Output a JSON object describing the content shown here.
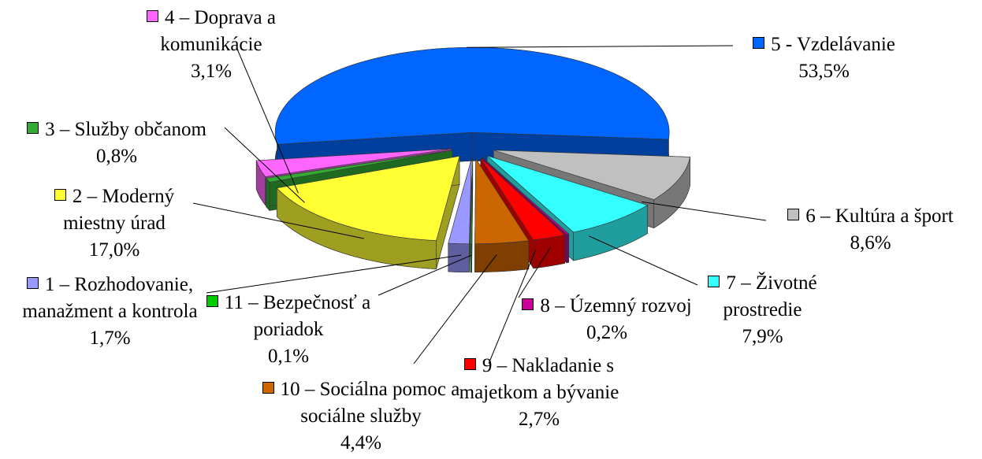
{
  "chart_data": {
    "type": "pie",
    "categories": [
      "1 – Rozhodovanie, manažment a kontrola",
      "2 – Moderný miestny úrad",
      "3 – Služby občanom",
      "4 – Doprava a komunikácie",
      "5 - Vzdelávanie",
      "6 – Kultúra a šport",
      "7 – Životné prostredie",
      "8 – Územný rozvoj",
      "9 – Nakladanie s majetkom a bývanie",
      "10 – Sociálna pomoc a sociálne služby",
      "11 – Bezpečnosť a poriadok"
    ],
    "values": [
      1.7,
      17.0,
      0.8,
      3.1,
      53.5,
      8.6,
      7.9,
      0.2,
      2.7,
      4.4,
      0.1
    ],
    "value_labels": [
      "1,7%",
      "17,0%",
      "0,8%",
      "3,1%",
      "53,5%",
      "8,6%",
      "7,9%",
      "0,2%",
      "2,7%",
      "4,4%",
      "0,1%"
    ],
    "colors": [
      "#9999ff",
      "#ffff33",
      "#33aa33",
      "#ff66ff",
      "#0066ff",
      "#c0c0c0",
      "#33ffff",
      "#cc0099",
      "#ff0000",
      "#cc6600",
      "#00cc00"
    ],
    "legend": true
  }
}
